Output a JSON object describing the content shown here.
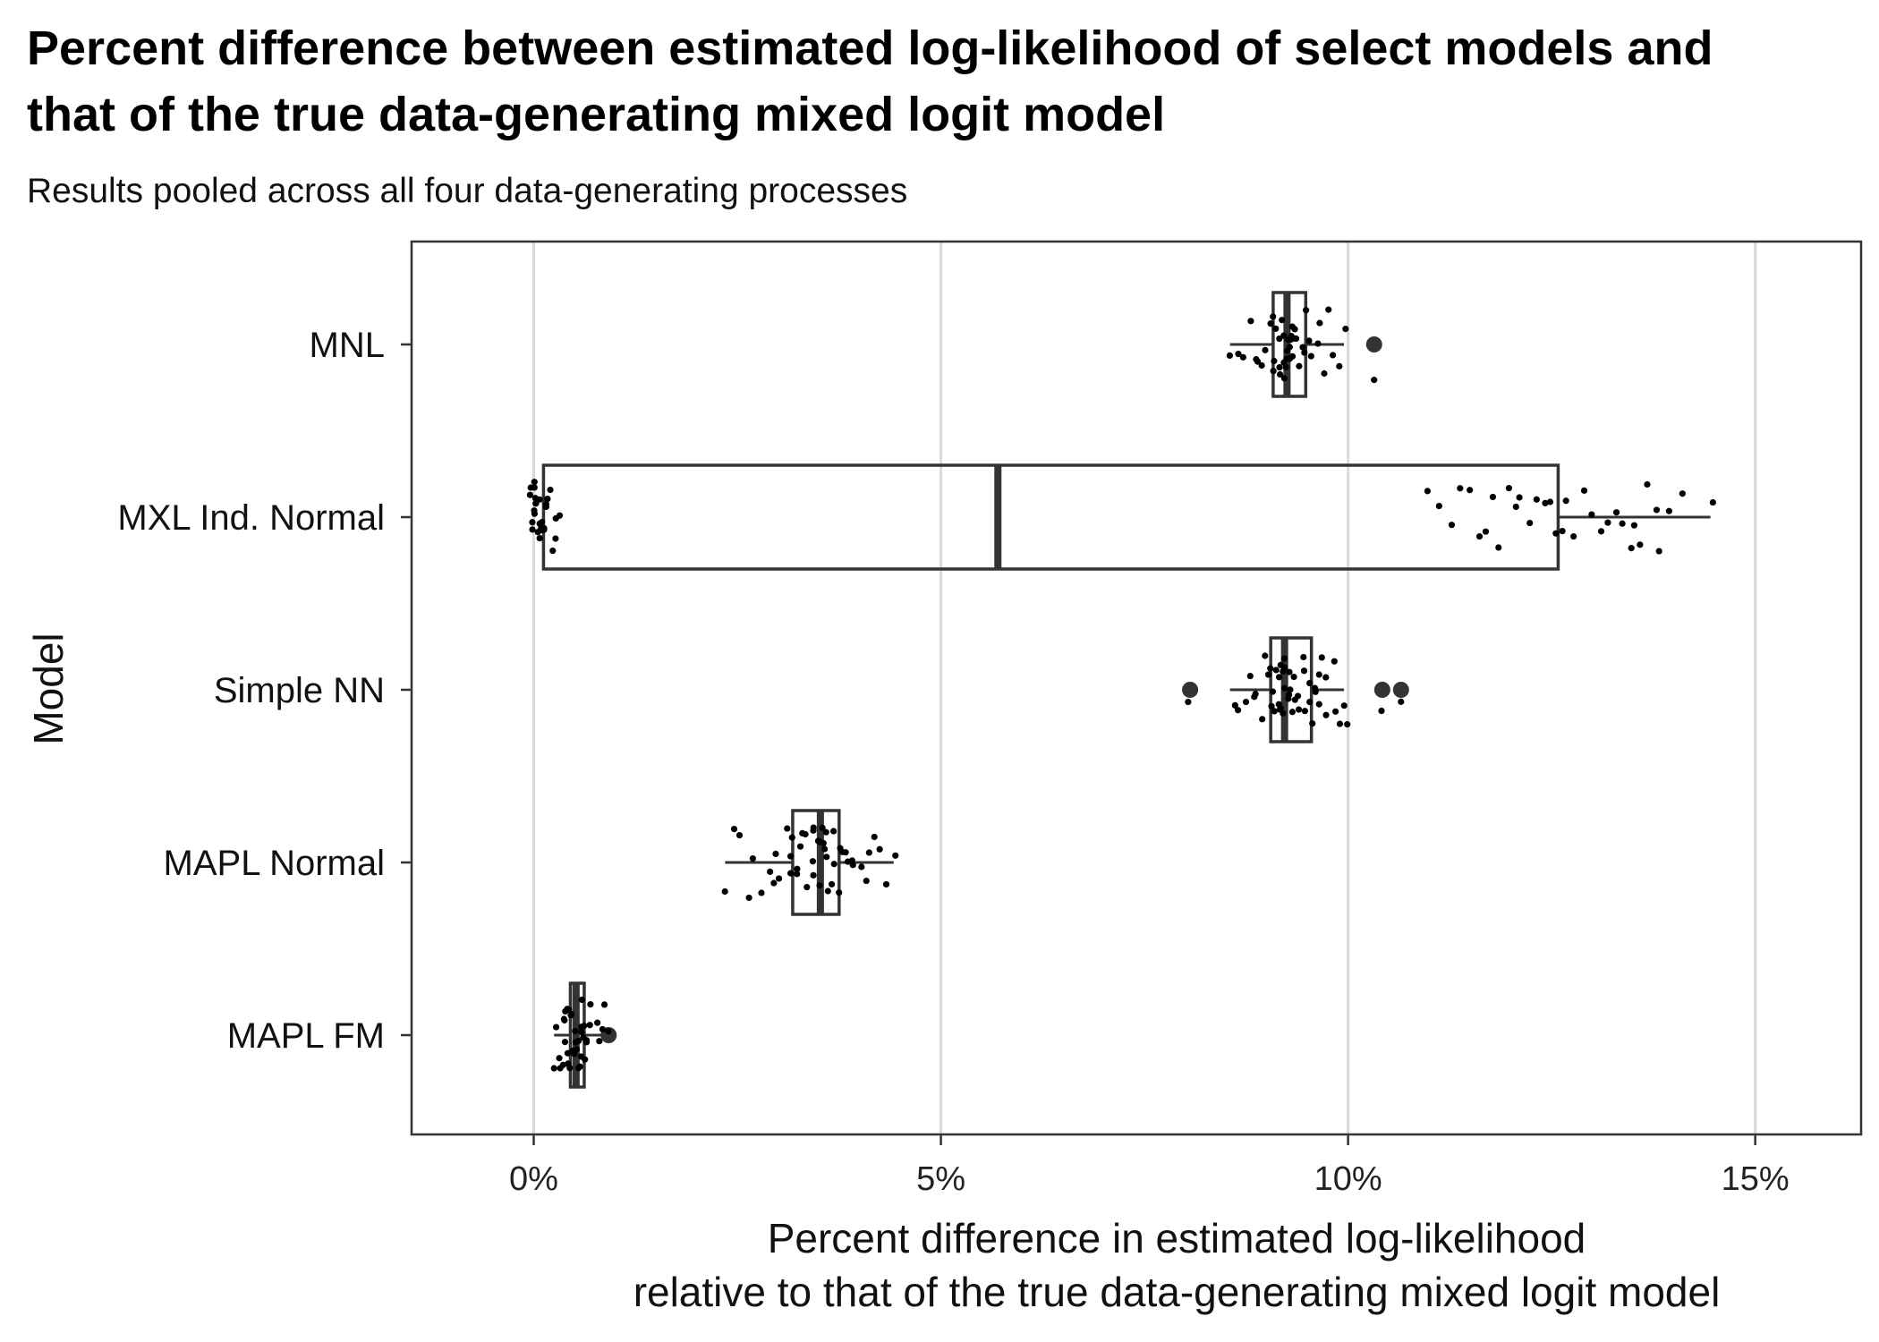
{
  "chart_data": {
    "type": "boxplot",
    "title": "Percent difference between estimated log-likelihood of select models and that of the true data-generating mixed logit model",
    "title_lines": [
      "Percent difference between estimated log-likelihood of select models and",
      "that of the true data-generating mixed logit model"
    ],
    "subtitle": "Results pooled across all four data-generating processes",
    "xlabel_lines": [
      "Percent difference in estimated log-likelihood",
      "relative to that of the true data-generating mixed logit model"
    ],
    "ylabel": "Model",
    "xlim": [
      -0.015,
      0.163
    ],
    "x_ticks": [
      0,
      0.05,
      0.1,
      0.15
    ],
    "x_tick_labels": [
      "0%",
      "5%",
      "10%",
      "15%"
    ],
    "grid": "vertical",
    "categories": [
      "MNL",
      "MXL Ind. Normal",
      "Simple NN",
      "MAPL Normal",
      "MAPL FM"
    ],
    "boxes": [
      {
        "name": "MNL",
        "q1": 0.0908,
        "median": 0.0925,
        "q3": 0.0948,
        "whisker_low": 0.0855,
        "whisker_high": 0.0995,
        "outliers": [
          0.1032
        ]
      },
      {
        "name": "MXL Ind. Normal",
        "q1": 0.0012,
        "median": 0.057,
        "q3": 0.1258,
        "whisker_low": 0.0012,
        "whisker_high": 0.1445,
        "outliers": []
      },
      {
        "name": "Simple NN",
        "q1": 0.0905,
        "median": 0.0922,
        "q3": 0.0955,
        "whisker_low": 0.0855,
        "whisker_high": 0.0995,
        "outliers": [
          0.0806,
          0.1042,
          0.1065
        ]
      },
      {
        "name": "MAPL Normal",
        "q1": 0.0318,
        "median": 0.0352,
        "q3": 0.0375,
        "whisker_low": 0.0235,
        "whisker_high": 0.0442,
        "outliers": []
      },
      {
        "name": "MAPL FM",
        "q1": 0.0045,
        "median": 0.0052,
        "q3": 0.0062,
        "whisker_low": 0.0025,
        "whisker_high": 0.0085,
        "outliers": [
          0.0092
        ]
      }
    ],
    "points": [
      {
        "name": "MNL",
        "x": [
          0.0856,
          0.0862,
          0.087,
          0.0878,
          0.0885,
          0.089,
          0.0896,
          0.09,
          0.0903,
          0.0906,
          0.0908,
          0.091,
          0.0912,
          0.0914,
          0.0916,
          0.0918,
          0.092,
          0.0921,
          0.0922,
          0.0923,
          0.0924,
          0.0925,
          0.0926,
          0.0927,
          0.0928,
          0.0929,
          0.093,
          0.0931,
          0.0932,
          0.0933,
          0.0934,
          0.0935,
          0.0936,
          0.0938,
          0.094,
          0.0942,
          0.0945,
          0.0948,
          0.0952,
          0.0956,
          0.096,
          0.0965,
          0.097,
          0.0975,
          0.0982,
          0.0988,
          0.0995,
          0.1032
        ]
      },
      {
        "name": "MXL Ind. Normal",
        "x": [
          -0.0005,
          -0.0004,
          -0.0003,
          -0.0002,
          -0.0002,
          -0.0001,
          0.0,
          0.0,
          0.0001,
          0.0002,
          0.0003,
          0.0004,
          0.0005,
          0.0006,
          0.0007,
          0.0008,
          0.0009,
          0.001,
          0.0011,
          0.0012,
          0.0013,
          0.0014,
          0.0016,
          0.0018,
          0.002,
          0.0022,
          0.0025,
          0.0028,
          0.0032,
          0.1095,
          0.1115,
          0.1128,
          0.114,
          0.1152,
          0.116,
          0.117,
          0.1178,
          0.1186,
          0.1195,
          0.1203,
          0.1212,
          0.122,
          0.123,
          0.124,
          0.1248,
          0.1255,
          0.1262,
          0.127,
          0.128,
          0.129,
          0.13,
          0.131,
          0.132,
          0.133,
          0.1338,
          0.1345,
          0.1352,
          0.136,
          0.1368,
          0.1376,
          0.1385,
          0.1395,
          0.1408,
          0.1445
        ]
      },
      {
        "name": "Simple NN",
        "x": [
          0.0858,
          0.0865,
          0.0872,
          0.0878,
          0.0884,
          0.0889,
          0.0893,
          0.0897,
          0.09,
          0.0903,
          0.0905,
          0.0907,
          0.0909,
          0.0911,
          0.0913,
          0.0915,
          0.0917,
          0.0918,
          0.0919,
          0.092,
          0.0921,
          0.0922,
          0.0923,
          0.0924,
          0.0925,
          0.0926,
          0.0928,
          0.093,
          0.0932,
          0.0934,
          0.0936,
          0.0938,
          0.094,
          0.0942,
          0.0945,
          0.0948,
          0.095,
          0.0953,
          0.0955,
          0.0958,
          0.096,
          0.0963,
          0.0966,
          0.097,
          0.0973,
          0.0976,
          0.098,
          0.0984,
          0.0988,
          0.0993,
          0.0998,
          0.0806,
          0.1042,
          0.1065
        ]
      },
      {
        "name": "MAPL Normal",
        "x": [
          0.0235,
          0.0245,
          0.0255,
          0.0265,
          0.0272,
          0.028,
          0.0287,
          0.0293,
          0.0299,
          0.0304,
          0.0309,
          0.0313,
          0.0317,
          0.032,
          0.0323,
          0.0326,
          0.0329,
          0.0332,
          0.0335,
          0.0338,
          0.034,
          0.0342,
          0.0344,
          0.0346,
          0.0348,
          0.035,
          0.0352,
          0.0354,
          0.0356,
          0.0358,
          0.036,
          0.0362,
          0.0364,
          0.0366,
          0.0368,
          0.037,
          0.0373,
          0.0376,
          0.0379,
          0.0382,
          0.0386,
          0.039,
          0.0395,
          0.04,
          0.0406,
          0.0412,
          0.0418,
          0.0425,
          0.0433,
          0.0442
        ]
      },
      {
        "name": "MAPL FM",
        "x": [
          0.0025,
          0.0028,
          0.0031,
          0.0033,
          0.0035,
          0.0037,
          0.0038,
          0.0039,
          0.004,
          0.0041,
          0.0042,
          0.0043,
          0.0044,
          0.0045,
          0.0046,
          0.0047,
          0.0048,
          0.0049,
          0.005,
          0.0051,
          0.0052,
          0.0053,
          0.0054,
          0.0055,
          0.0056,
          0.0057,
          0.0058,
          0.0059,
          0.006,
          0.0061,
          0.0062,
          0.0063,
          0.0064,
          0.0066,
          0.0068,
          0.007,
          0.0072,
          0.0075,
          0.0078,
          0.0082,
          0.0085,
          0.0092
        ]
      }
    ],
    "colors": {
      "box_stroke": "#333333",
      "point": "#000000",
      "outlier": "#333333",
      "grid": "#d9d9d9",
      "panel_border": "#333333"
    }
  }
}
